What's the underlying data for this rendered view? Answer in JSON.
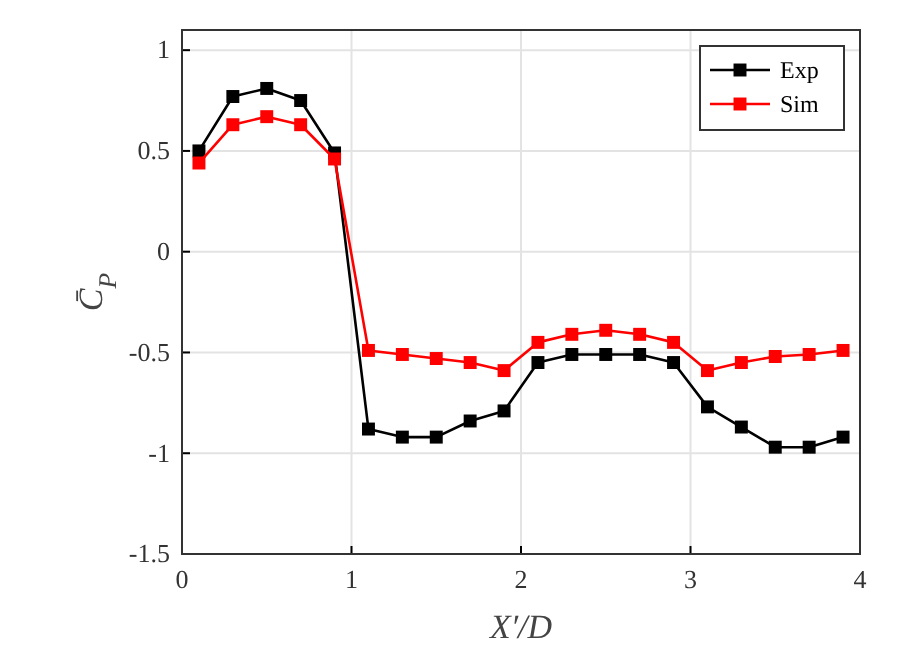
{
  "chart_data": {
    "type": "line",
    "xlabel": "X′/D",
    "ylabel": "C̄$_{P}$",
    "x": [
      0.1,
      0.3,
      0.5,
      0.7,
      0.9,
      1.1,
      1.3,
      1.5,
      1.7,
      1.9,
      2.1,
      2.3,
      2.5,
      2.7,
      2.9,
      3.1,
      3.3,
      3.5,
      3.7,
      3.9
    ],
    "series": [
      {
        "name": "Exp",
        "color": "#000000",
        "values": [
          0.5,
          0.77,
          0.81,
          0.75,
          0.49,
          -0.88,
          -0.92,
          -0.92,
          -0.84,
          -0.79,
          -0.55,
          -0.51,
          -0.51,
          -0.51,
          -0.55,
          -0.77,
          -0.87,
          -0.97,
          -0.97,
          -0.92
        ]
      },
      {
        "name": "Sim",
        "color": "#ff0000",
        "values": [
          0.44,
          0.63,
          0.67,
          0.63,
          0.46,
          -0.49,
          -0.51,
          -0.53,
          -0.55,
          -0.59,
          -0.45,
          -0.41,
          -0.39,
          -0.41,
          -0.45,
          -0.59,
          -0.55,
          -0.52,
          -0.51,
          -0.49
        ]
      }
    ],
    "xlim": [
      0,
      4
    ],
    "xticks": [
      0,
      1,
      2,
      3,
      4
    ],
    "ylim": [
      -1.5,
      1.1
    ],
    "yticks": [
      -1.5,
      -1,
      -0.5,
      0,
      0.5,
      1
    ],
    "grid": true,
    "legend": "top right",
    "marker": "square",
    "line_style": "solid"
  }
}
